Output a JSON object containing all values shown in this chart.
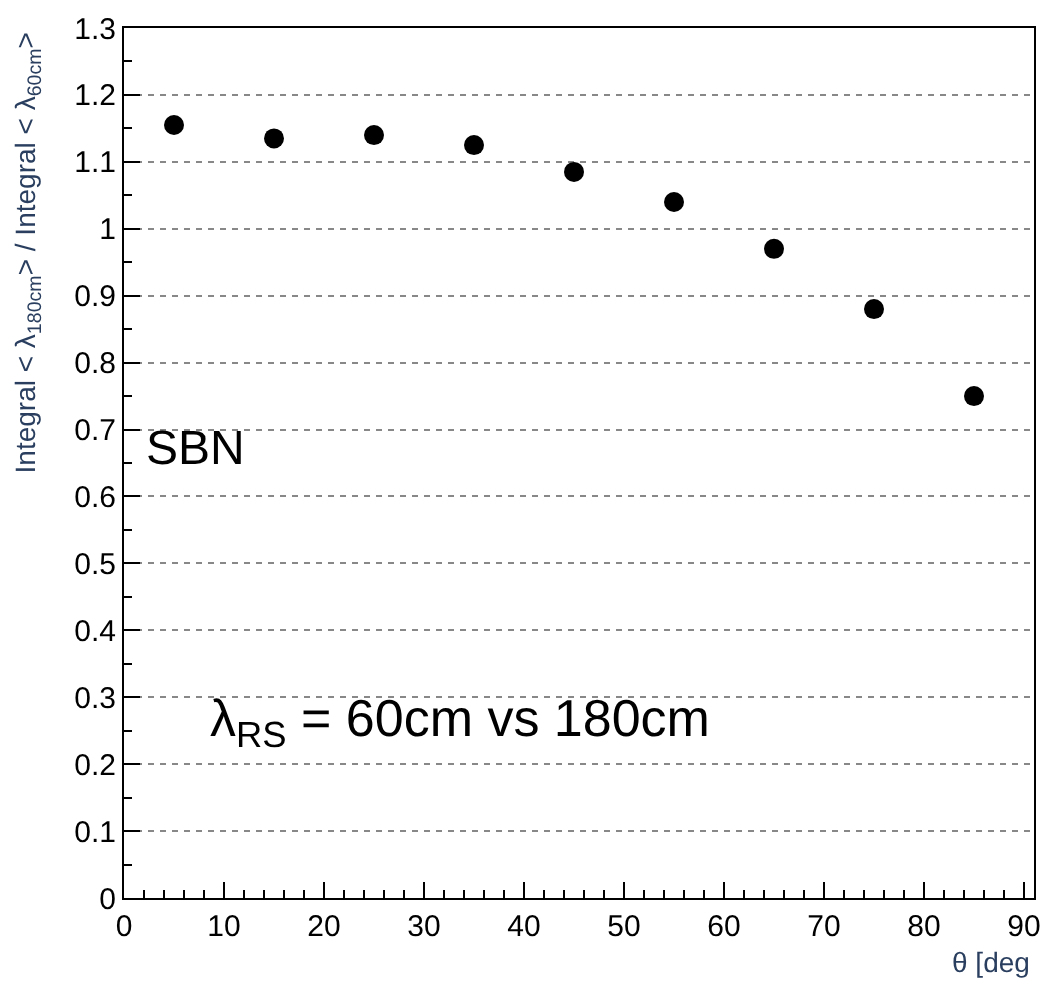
{
  "chart_data": {
    "type": "scatter",
    "x": [
      5,
      15,
      25,
      35,
      45,
      55,
      65,
      75,
      85
    ],
    "values": [
      1.155,
      1.135,
      1.14,
      1.125,
      1.085,
      1.04,
      0.97,
      0.88,
      0.75
    ],
    "color": "#000000",
    "marker": "circle",
    "xlim": [
      0,
      91
    ],
    "xticks": [
      0,
      10,
      20,
      30,
      40,
      50,
      60,
      70,
      80,
      90
    ],
    "ylim": [
      0,
      1.3
    ],
    "yticks": [
      0,
      0.1,
      0.2,
      0.3,
      0.4,
      0.5,
      0.6,
      0.7,
      0.8,
      0.9,
      1,
      1.1,
      1.2,
      1.3
    ],
    "grid": "y",
    "xlabel": "θ [deg",
    "ylabel": "Integral < λ$_{180cm}$> / Integral < λ$_{60cm}$>",
    "annotations": [
      "SBN",
      "λ$_{RS}$ = 60cm vs 180cm"
    ]
  }
}
